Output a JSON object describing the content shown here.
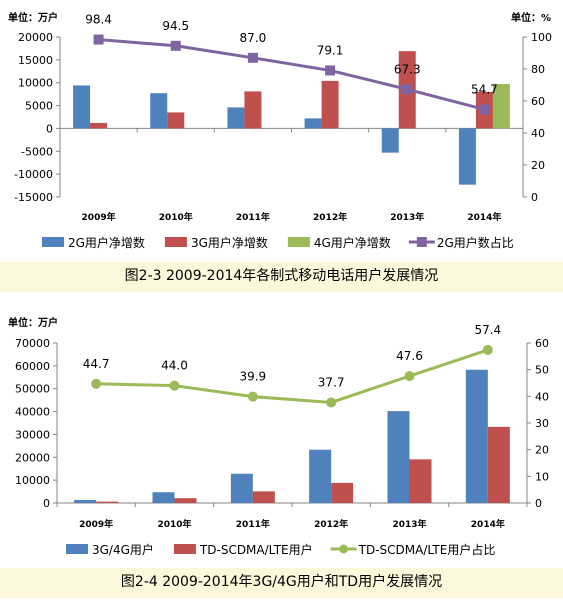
{
  "chart_data": [
    {
      "type": "bar",
      "unit_left": "单位：万户",
      "unit_right": "单位：%",
      "categories": [
        "2009年",
        "2010年",
        "2011年",
        "2012年",
        "2013年",
        "2014年"
      ],
      "ylim_left": [
        -15000,
        20000
      ],
      "yticks_left": [
        20000,
        15000,
        10000,
        5000,
        0,
        -5000,
        -10000,
        -15000
      ],
      "ylim_right": [
        0,
        100
      ],
      "yticks_right": [
        100,
        80,
        60,
        40,
        20,
        0
      ],
      "series": [
        {
          "name": "2G用户净增数",
          "type": "bar",
          "axis": "left",
          "color": "#4f81bd",
          "values": [
            9400,
            7700,
            4600,
            2200,
            -5300,
            -12300
          ]
        },
        {
          "name": "3G用户净增数",
          "type": "bar",
          "axis": "left",
          "color": "#c0504d",
          "values": [
            1200,
            3500,
            8100,
            10400,
            16900,
            8000
          ]
        },
        {
          "name": "4G用户净增数",
          "type": "bar",
          "axis": "left",
          "color": "#9bbb59",
          "values": [
            null,
            null,
            null,
            null,
            null,
            9700
          ]
        },
        {
          "name": "2G用户数占比",
          "type": "line",
          "axis": "right",
          "color": "#8064a2",
          "values": [
            98.4,
            94.5,
            87.0,
            79.1,
            67.3,
            54.7
          ],
          "labels": [
            "98.4",
            "94.5",
            "87.0",
            "79.1",
            "67.3",
            "54.7"
          ]
        }
      ],
      "caption": "图2-3  2009-2014年各制式移动电话用户发展情况"
    },
    {
      "type": "bar",
      "unit_left": "单位：万户",
      "categories": [
        "2009年",
        "2010年",
        "2011年",
        "2012年",
        "2013年",
        "2014年"
      ],
      "ylim_left": [
        0,
        70000
      ],
      "yticks_left": [
        70000,
        60000,
        50000,
        40000,
        30000,
        20000,
        10000,
        0
      ],
      "ylim_right": [
        0,
        60
      ],
      "yticks_right": [
        60,
        50,
        40,
        30,
        20,
        10,
        0
      ],
      "series": [
        {
          "name": "3G/4G用户",
          "type": "bar",
          "axis": "left",
          "color": "#4f81bd",
          "values": [
            1300,
            4700,
            12800,
            23300,
            40200,
            58300
          ]
        },
        {
          "name": "TD-SCDMA/LTE用户",
          "type": "bar",
          "axis": "left",
          "color": "#c0504d",
          "values": [
            600,
            2100,
            5100,
            8800,
            19100,
            33300
          ]
        },
        {
          "name": "TD-SCDMA/LTE用户占比",
          "type": "line",
          "axis": "right",
          "color": "#9bbb59",
          "values": [
            44.7,
            44.0,
            39.9,
            37.7,
            47.6,
            57.4
          ],
          "labels": [
            "44.7",
            "44.0",
            "39.9",
            "37.7",
            "47.6",
            "57.4"
          ]
        }
      ],
      "caption": "图2-4  2009-2014年3G/4G用户和TD用户发展情况"
    }
  ]
}
